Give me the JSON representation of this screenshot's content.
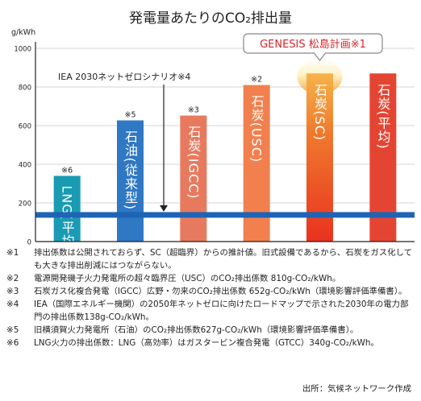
{
  "chart_data": {
    "type": "bar",
    "title": "発電量あたりのCO₂排出量",
    "ylabel": "g/kWh",
    "ylim": [
      0,
      1000
    ],
    "yticks": [
      0,
      200,
      400,
      600,
      800,
      1000
    ],
    "grid": true,
    "categories": [
      "LNG(平均)",
      "石油(従来型)",
      "石炭(IGCC)",
      "石炭(USC)",
      "石炭(SC)",
      "石炭(平均)"
    ],
    "values": [
      340,
      627,
      652,
      810,
      870,
      870
    ],
    "bar_marks": [
      "※6",
      "※5",
      "※3",
      "※2",
      "",
      ""
    ],
    "bar_colors": [
      "#1a9bb4",
      "#2f78c4",
      "#e77a5e",
      "#f1804e",
      "#ee4a24",
      "#e44533"
    ],
    "reference_line": {
      "value": 138,
      "label": "IEA 2030ネットゼロシナリオ※4",
      "color": "#1f63b5"
    },
    "callout": {
      "text": "GENESIS 松島計画※1",
      "color": "#d8242a",
      "target": "石炭(SC)"
    }
  },
  "notes": [
    {
      "mark": "※1",
      "text": "排出係数は公開されておらず、SC（超臨界）からの推計値。旧式設備であるから、石炭をガス化しても大きな排出削減にはつながらない。"
    },
    {
      "mark": "※2",
      "text": "電源開発磯子火力発電所の超々臨界圧（USC）のCO₂排出係数 810g-CO₂/kWh。"
    },
    {
      "mark": "※3",
      "text": "石炭ガス化複合発電（IGCC）広野・勿来のCO₂排出係数 652g-CO₂/kWh（環境影響評価準備書）。"
    },
    {
      "mark": "※4",
      "text": "IEA（国際エネルギー機関）の2050年ネットゼロに向けたロードマップで示された2030年の電力部門の排出係数138g-CO₂/kWh。"
    },
    {
      "mark": "※5",
      "text": "旧横須賀火力発電所（石油）のCO₂排出係数627g-CO₂/kWh（環境影響評価準備書）。"
    },
    {
      "mark": "※6",
      "text": "LNG火力の排出係数：LNG（高効率）はガスタービン複合発電（GTCC）340g-CO₂/kWh。"
    }
  ],
  "source": "出所：気候ネットワーク作成"
}
